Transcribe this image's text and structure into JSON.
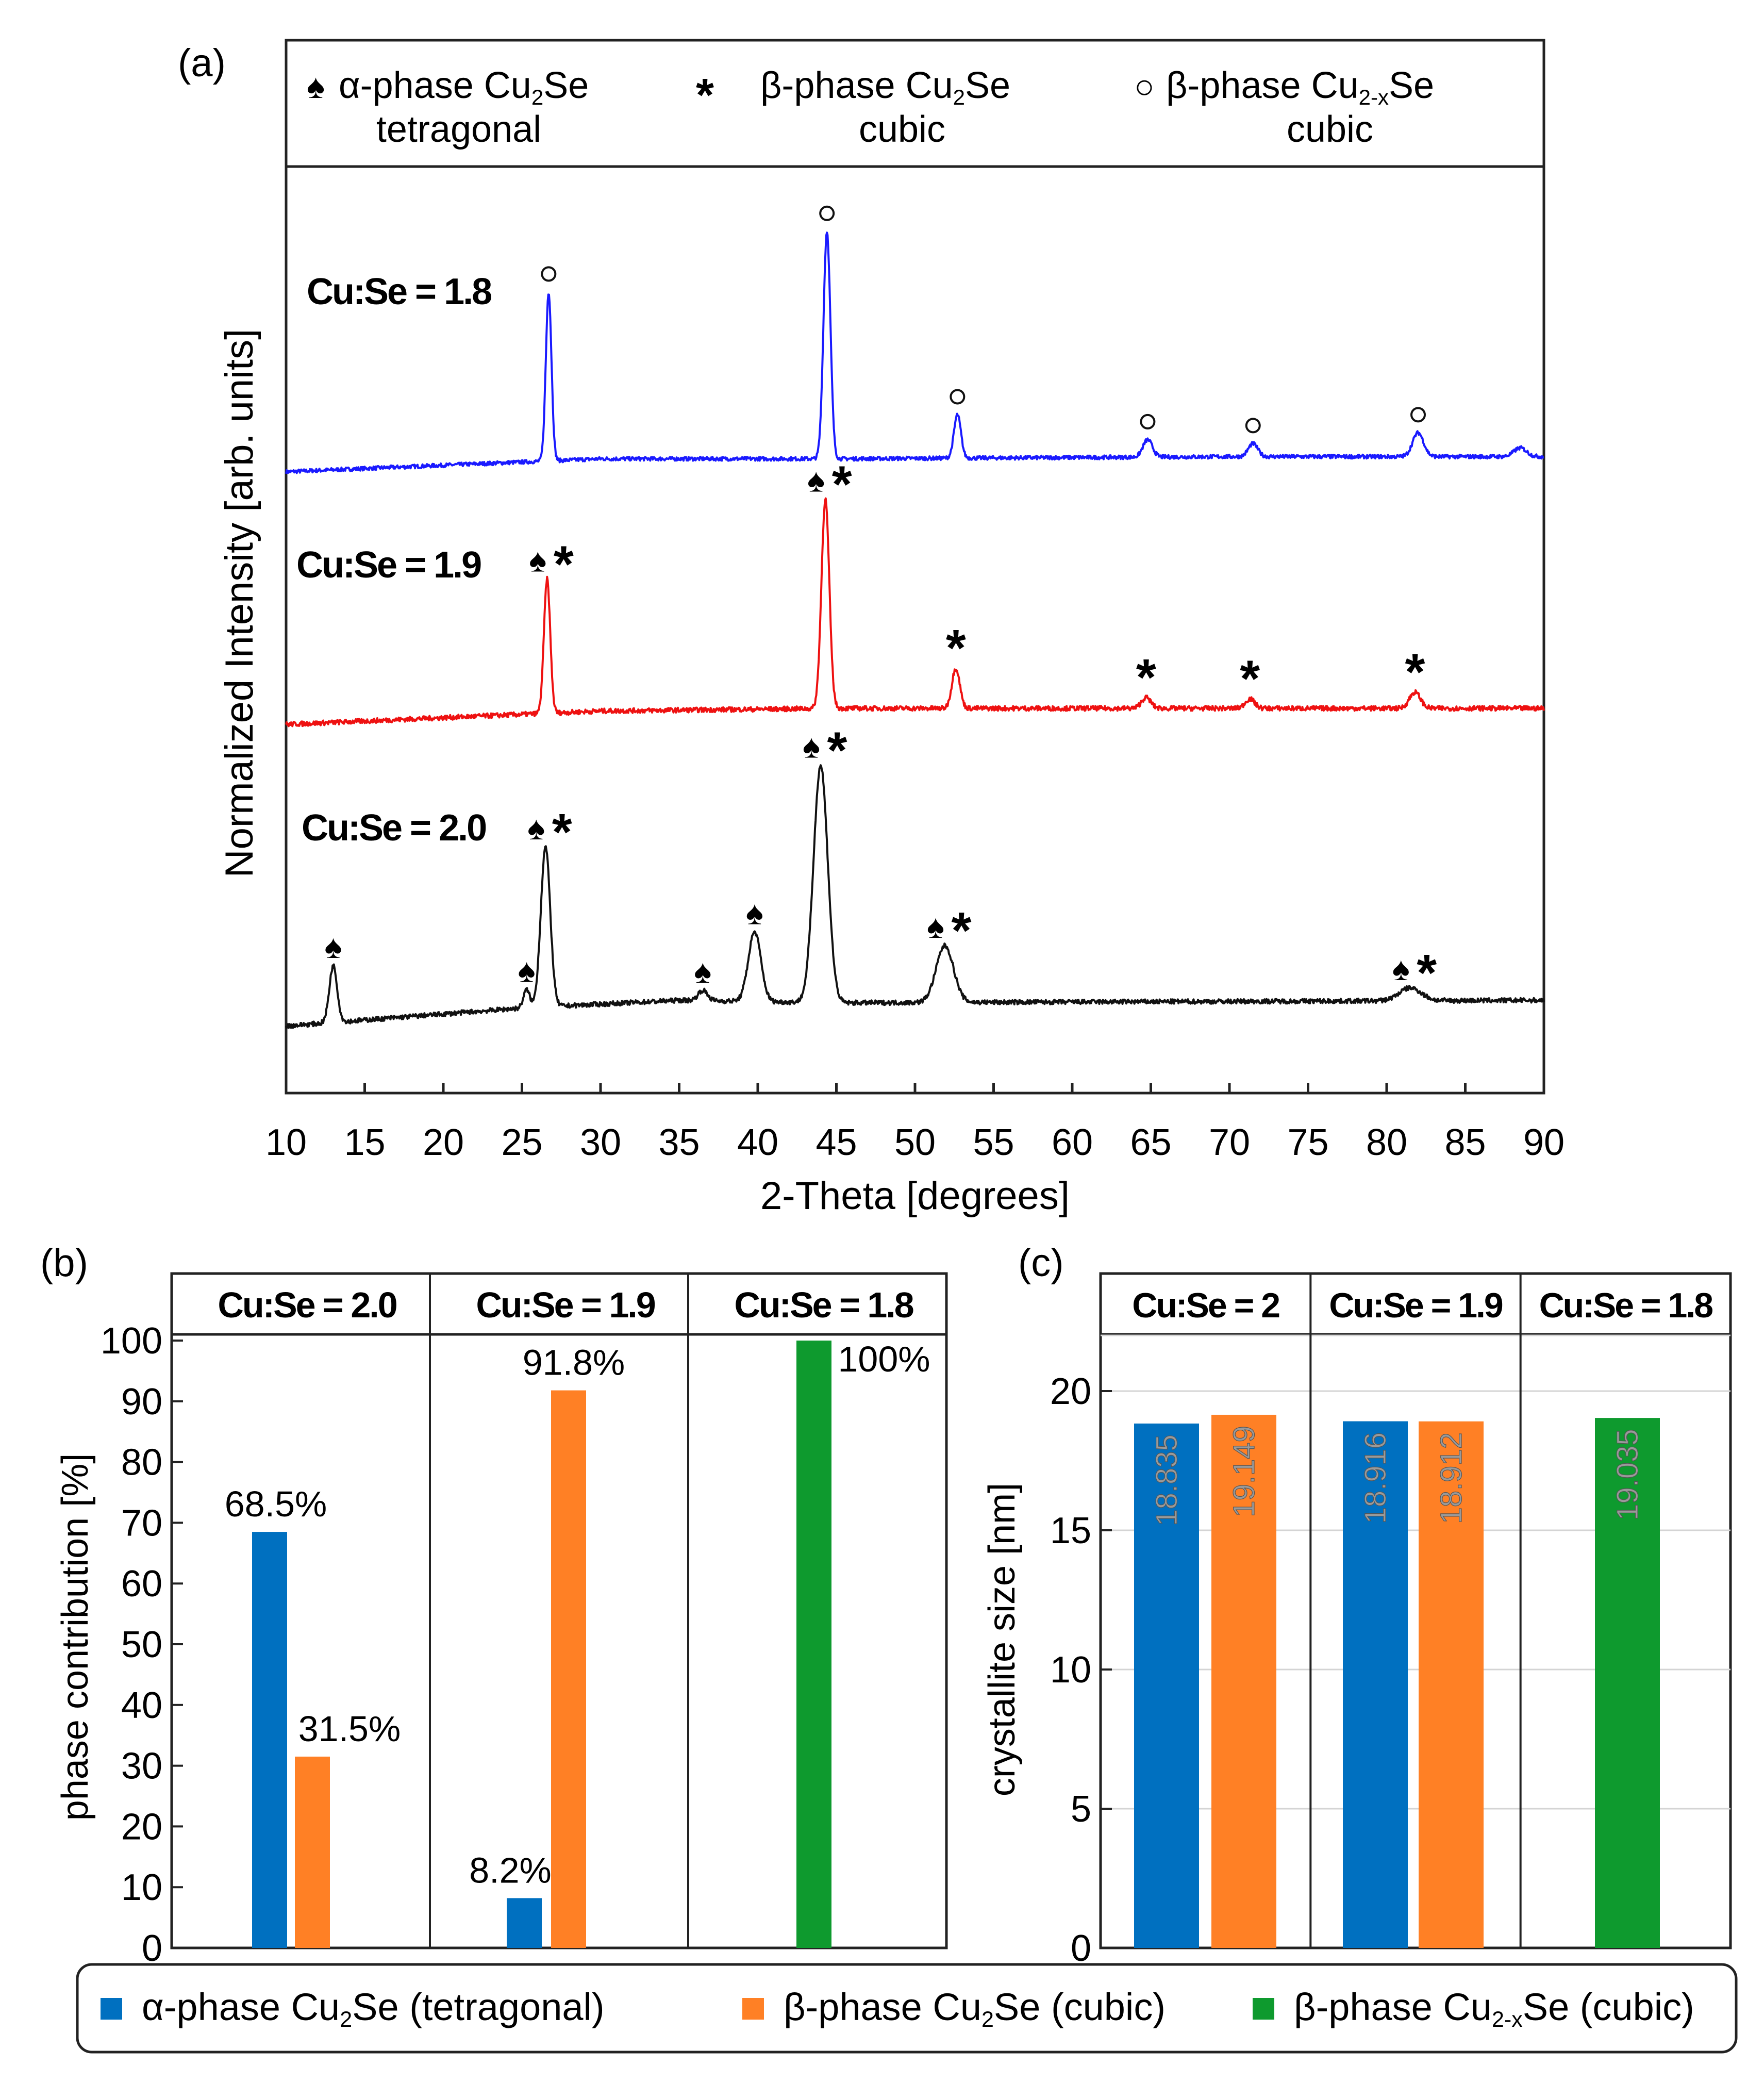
{
  "chart_data": [
    {
      "panel": "a",
      "panel_label": "(a)",
      "type": "line",
      "xlabel": "2-Theta [degrees]",
      "ylabel": "Normalized Intensity [arb. units]",
      "xlim": [
        10,
        90
      ],
      "xticks": [
        10,
        15,
        20,
        25,
        30,
        35,
        40,
        45,
        50,
        55,
        60,
        65,
        70,
        75,
        80,
        85,
        90
      ],
      "legend": [
        {
          "symbol": "♠",
          "base": "α-phase Cu",
          "sub": "2",
          "tail": "Se",
          "line2": "tetragonal"
        },
        {
          "symbol": "*",
          "base": "β-phase Cu",
          "sub": "2",
          "tail": "Se",
          "line2": "cubic"
        },
        {
          "symbol": "○",
          "base": "β-phase Cu",
          "sub": "2-x",
          "tail": "Se",
          "line2": "cubic"
        }
      ],
      "series": [
        {
          "name": "Cu:Se = 1.8",
          "color": "#1a1aff",
          "baseline": [
            [
              10,
              0.0
            ],
            [
              30,
              0.06
            ],
            [
              45,
              0.06
            ],
            [
              70,
              0.07
            ],
            [
              90,
              0.07
            ]
          ],
          "peaks": [
            {
              "x": 26.7,
              "h": 0.78,
              "w": 0.18,
              "marker": "○"
            },
            {
              "x": 44.4,
              "h": 1.05,
              "w": 0.22,
              "marker": "○"
            },
            {
              "x": 52.7,
              "h": 0.2,
              "w": 0.22,
              "marker": "○"
            },
            {
              "x": 64.8,
              "h": 0.08,
              "w": 0.3,
              "marker": "○"
            },
            {
              "x": 71.5,
              "h": 0.06,
              "w": 0.3,
              "marker": "○"
            },
            {
              "x": 82.0,
              "h": 0.11,
              "w": 0.35,
              "marker": "○"
            },
            {
              "x": 88.5,
              "h": 0.04,
              "w": 0.4,
              "marker": ""
            }
          ]
        },
        {
          "name": "Cu:Se = 1.9",
          "color": "#ee1111",
          "baseline": [
            [
              10,
              0.0
            ],
            [
              30,
              0.05
            ],
            [
              45,
              0.06
            ],
            [
              70,
              0.06
            ],
            [
              90,
              0.06
            ]
          ],
          "peaks": [
            {
              "x": 26.6,
              "h": 0.5,
              "w": 0.2,
              "marker": "♠*"
            },
            {
              "x": 44.3,
              "h": 0.78,
              "w": 0.25,
              "marker": "♠*"
            },
            {
              "x": 52.6,
              "h": 0.15,
              "w": 0.25,
              "marker": "*"
            },
            {
              "x": 64.7,
              "h": 0.04,
              "w": 0.3,
              "marker": "*"
            },
            {
              "x": 71.3,
              "h": 0.035,
              "w": 0.3,
              "marker": "*"
            },
            {
              "x": 81.8,
              "h": 0.06,
              "w": 0.35,
              "marker": "*"
            }
          ]
        },
        {
          "name": "Cu:Se = 2.0",
          "color": "#111111",
          "baseline": [
            [
              10,
              0.0
            ],
            [
              25,
              0.07
            ],
            [
              35,
              0.1
            ],
            [
              45,
              0.09
            ],
            [
              90,
              0.1
            ]
          ],
          "peaks": [
            {
              "x": 13.0,
              "h": 0.22,
              "w": 0.25,
              "marker": "♠"
            },
            {
              "x": 25.3,
              "h": 0.07,
              "w": 0.2,
              "marker": "♠"
            },
            {
              "x": 26.5,
              "h": 0.62,
              "w": 0.3,
              "marker": "♠*"
            },
            {
              "x": 36.5,
              "h": 0.04,
              "w": 0.3,
              "marker": "♠"
            },
            {
              "x": 39.8,
              "h": 0.27,
              "w": 0.4,
              "marker": "♠"
            },
            {
              "x": 44.0,
              "h": 0.92,
              "w": 0.45,
              "marker": "♠*"
            },
            {
              "x": 51.9,
              "h": 0.22,
              "w": 0.55,
              "marker": "♠*"
            },
            {
              "x": 81.5,
              "h": 0.05,
              "w": 0.7,
              "marker": "♠*"
            }
          ]
        }
      ]
    },
    {
      "panel": "b",
      "panel_label": "(b)",
      "type": "bar",
      "ylabel": "phase contribution [%]",
      "ylim": [
        0,
        100
      ],
      "yticks": [
        0,
        10,
        20,
        30,
        40,
        50,
        60,
        70,
        80,
        90,
        100
      ],
      "groups": [
        "Cu:Se = 2.0",
        "Cu:Se = 1.9",
        "Cu:Se = 1.8"
      ],
      "series": [
        {
          "name": "α-phase Cu2Se (tetragonal)",
          "values": [
            68.5,
            8.2,
            null
          ],
          "labels": [
            "68.5%",
            "8.2%",
            ""
          ]
        },
        {
          "name": "β-phase Cu2Se (cubic)",
          "values": [
            31.5,
            91.8,
            null
          ],
          "labels": [
            "31.5%",
            "91.8%",
            ""
          ]
        },
        {
          "name": "β-phase Cu2-xSe (cubic)",
          "values": [
            null,
            null,
            100
          ],
          "labels": [
            "",
            "",
            "100%"
          ]
        }
      ]
    },
    {
      "panel": "c",
      "panel_label": "(c)",
      "type": "bar",
      "ylabel": "crystallite size [nm]",
      "ylim": [
        0,
        22
      ],
      "yticks": [
        0,
        5,
        10,
        15,
        20
      ],
      "grid": true,
      "groups": [
        "Cu:Se = 2",
        "Cu:Se = 1.9",
        "Cu:Se = 1.8"
      ],
      "series": [
        {
          "name": "α-phase Cu2Se (tetragonal)",
          "values": [
            18.835,
            18.916,
            null
          ],
          "labels": [
            "18.835",
            "18.916",
            ""
          ]
        },
        {
          "name": "β-phase Cu2Se (cubic)",
          "values": [
            19.149,
            18.912,
            null
          ],
          "labels": [
            "19.149",
            "18.912",
            ""
          ]
        },
        {
          "name": "β-phase Cu2-xSe (cubic)",
          "values": [
            null,
            null,
            19.035
          ],
          "labels": [
            "",
            "",
            "19.035"
          ]
        }
      ]
    }
  ],
  "bottom_legend": [
    {
      "color": "#0070c0",
      "base": "α-phase Cu",
      "sub": "2",
      "tail": "Se  (tetragonal)"
    },
    {
      "color": "#ff8025",
      "base": "β-phase Cu",
      "sub": "2",
      "tail": "Se (cubic)"
    },
    {
      "color": "#0e9a2e",
      "base": "β-phase Cu",
      "sub": "2-x",
      "tail": "Se (cubic)"
    }
  ],
  "colors": {
    "alpha": "#0070c0",
    "beta": "#ff8025",
    "beta_x": "#0e9a2e"
  }
}
